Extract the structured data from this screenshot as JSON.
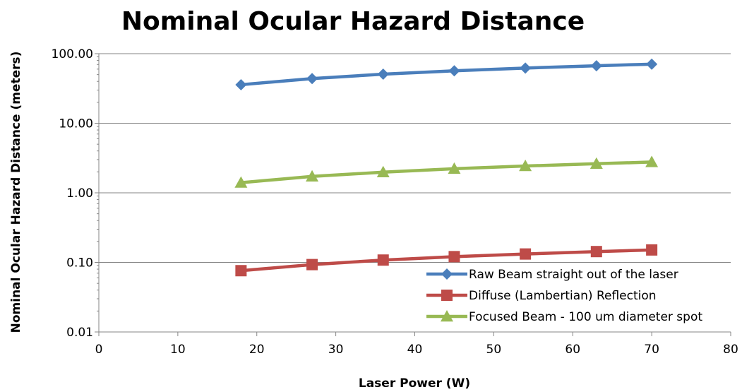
{
  "chart_data": {
    "type": "line",
    "title": "Nominal Ocular Hazard Distance",
    "xlabel": "Laser Power (W)",
    "ylabel": "Nominal Ocular Hazard Distance (meters)",
    "xlim": [
      0,
      80
    ],
    "ylim": [
      0.01,
      100
    ],
    "yscale": "log",
    "grid": "horizontal",
    "legend_position": "bottom-right",
    "x_ticks": [
      "0",
      "10",
      "20",
      "30",
      "40",
      "50",
      "60",
      "70",
      "80"
    ],
    "y_ticks": [
      "0.01",
      "0.10",
      "1.00",
      "10.00",
      "100.00"
    ],
    "x": [
      18,
      27,
      36,
      45,
      54,
      63,
      70
    ],
    "series": [
      {
        "name": "Raw Beam straight out of the laser",
        "color": "#4a7ebb",
        "marker": "diamond",
        "values": [
          35.8,
          43.9,
          50.7,
          56.7,
          62.1,
          67.1,
          70.7
        ]
      },
      {
        "name": "Diffuse (Lambertian) Reflection",
        "color": "#be4b48",
        "marker": "square",
        "values": [
          0.076,
          0.093,
          0.108,
          0.121,
          0.132,
          0.143,
          0.151
        ]
      },
      {
        "name": "Focused Beam - 100 um diameter spot",
        "color": "#98b954",
        "marker": "triangle",
        "values": [
          1.4,
          1.72,
          1.98,
          2.22,
          2.43,
          2.62,
          2.77
        ]
      }
    ]
  }
}
